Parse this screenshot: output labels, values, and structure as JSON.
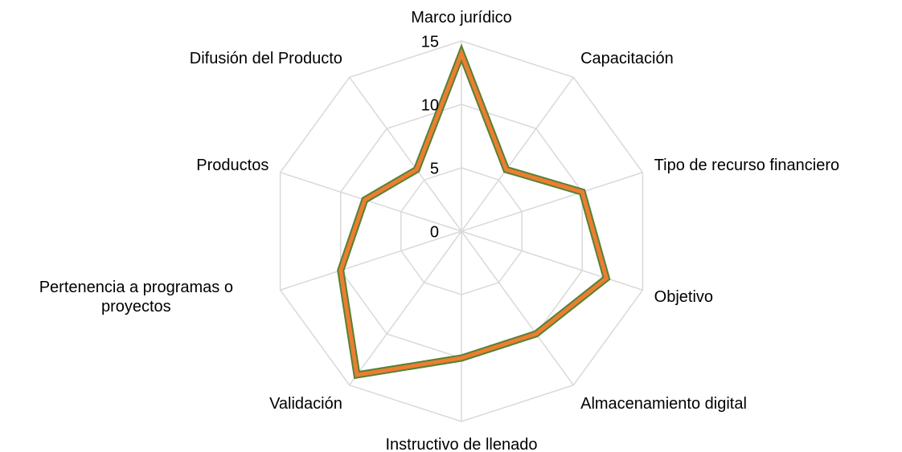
{
  "chart_data": {
    "type": "radar",
    "categories": [
      "Marco jurídico",
      "Capacitación",
      "Tipo de recurso financiero",
      "Objetivo",
      "Almacenamiento digital",
      "Instructivo de llenado",
      "Validación",
      "Pertenencia a programas o proyectos",
      "Productos",
      "Difusión del Producto"
    ],
    "series": [
      {
        "color": "#ED7D31",
        "edgecolor": "#548235",
        "values": [
          14,
          6,
          10,
          12,
          10,
          10,
          14,
          10,
          8,
          6
        ]
      }
    ],
    "ylim": [
      0,
      15
    ],
    "yticks": [
      0,
      5,
      10,
      15
    ],
    "grid": true
  }
}
